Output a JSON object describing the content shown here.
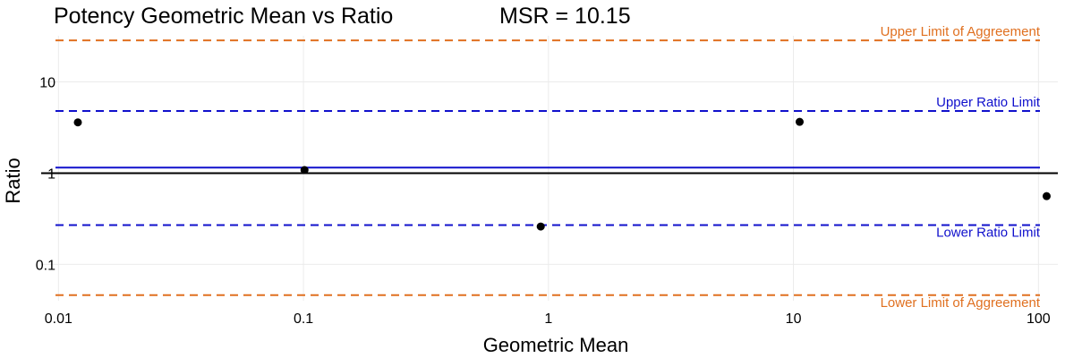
{
  "chart_data": {
    "type": "scatter",
    "title": "Potency Geometric Mean vs Ratio",
    "subtitle": "MSR = 10.15",
    "xlabel": "Geometric Mean",
    "ylabel": "Ratio",
    "xscale": "log",
    "yscale": "log",
    "xlim": [
      0.0085,
      120
    ],
    "ylim": [
      0.04,
      32
    ],
    "xticks": [
      {
        "value": 0.01,
        "label": "0.01"
      },
      {
        "value": 0.1,
        "label": "0.1"
      },
      {
        "value": 1,
        "label": "1"
      },
      {
        "value": 10,
        "label": "10"
      },
      {
        "value": 100,
        "label": "100"
      }
    ],
    "yticks": [
      {
        "value": 0.1,
        "label": "0.1"
      },
      {
        "value": 1,
        "label": "1"
      },
      {
        "value": 10,
        "label": "10"
      }
    ],
    "grid": true,
    "points": [
      {
        "x": 0.012,
        "y": 3.6
      },
      {
        "x": 0.101,
        "y": 1.08
      },
      {
        "x": 0.93,
        "y": 0.26
      },
      {
        "x": 10.6,
        "y": 3.65
      },
      {
        "x": 108,
        "y": 0.56
      }
    ],
    "reference_lines": [
      {
        "id": "upper-loa",
        "y": 28.5,
        "style": "dashed",
        "color": "#E07020",
        "label": "Upper Limit of Aggreement"
      },
      {
        "id": "upper-ratio",
        "y": 4.8,
        "style": "dashed",
        "color": "#1010CC",
        "label": "Upper Ratio Limit"
      },
      {
        "id": "mean-ratio",
        "y": 1.15,
        "style": "solid",
        "color": "#1010CC",
        "label": ""
      },
      {
        "id": "unity",
        "y": 1.0,
        "style": "solid",
        "color": "#000000",
        "label": ""
      },
      {
        "id": "lower-ratio",
        "y": 0.27,
        "style": "dashed",
        "color": "#1010CC",
        "label": "Lower Ratio Limit"
      },
      {
        "id": "lower-loa",
        "y": 0.046,
        "style": "dashed",
        "color": "#E07020",
        "label": "Lower Limit of Aggreement"
      }
    ]
  }
}
